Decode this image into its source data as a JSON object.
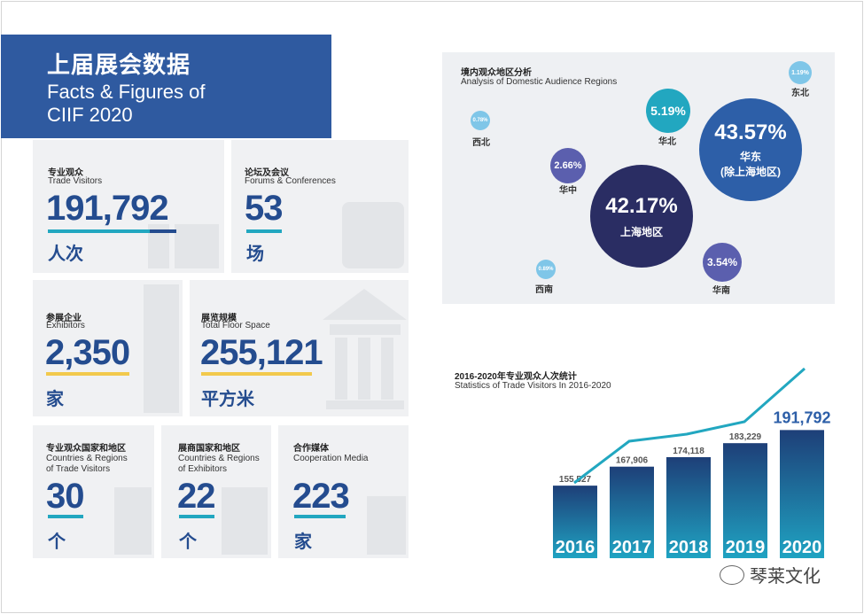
{
  "header": {
    "title_cn": "上届展会数据",
    "title_en_line1": "Facts & Figures of",
    "title_en_line2": "CIIF 2020"
  },
  "stats": {
    "trade_visitors": {
      "label_cn": "专业观众",
      "label_en": "Trade Visitors",
      "value": "191,792",
      "unit": "人次"
    },
    "forums": {
      "label_cn": "论坛及会议",
      "label_en": "Forums & Conferences",
      "value": "53",
      "unit": "场"
    },
    "exhibitors": {
      "label_cn": "参展企业",
      "label_en": "Exhibitors",
      "value": "2,350",
      "unit": "家"
    },
    "floor_space": {
      "label_cn": "展览规模",
      "label_en": "Total Floor Space",
      "value": "255,121",
      "unit": "平方米"
    },
    "visitor_countries": {
      "label_cn": "专业观众国家和地区",
      "label_en_1": "Countries & Regions",
      "label_en_2": "of Trade Visitors",
      "value": "30",
      "unit": "个"
    },
    "exhibitor_countries": {
      "label_cn": "展商国家和地区",
      "label_en_1": "Countries & Regions",
      "label_en_2": "of Exhibitors",
      "value": "22",
      "unit": "个"
    },
    "media": {
      "label_cn": "合作媒体",
      "label_en": "Cooperation Media",
      "value": "223",
      "unit": "家"
    }
  },
  "regions": {
    "title_cn": "境内观众地区分析",
    "title_en": "Analysis of Domestic Audience Regions",
    "items": [
      {
        "pct": "43.57%",
        "name": "华东",
        "name2": "(除上海地区)"
      },
      {
        "pct": "42.17%",
        "name": "上海地区"
      },
      {
        "pct": "5.19%",
        "name": "华北"
      },
      {
        "pct": "3.54%",
        "name": "华南"
      },
      {
        "pct": "2.66%",
        "name": "华中"
      },
      {
        "pct": "1.19%",
        "name": "东北"
      },
      {
        "pct": "0.78%",
        "name": "西北"
      },
      {
        "pct": "0.89%",
        "name": "西南"
      }
    ],
    "colors": {
      "dark": "#2a2d63",
      "blue": "#2d5fa8",
      "teal": "#22a7c0",
      "purple": "#5b5fae",
      "light": "#7fc6e8"
    }
  },
  "trend": {
    "title_cn": "2016-2020年专业观众人次统计",
    "title_en": "Statistics of Trade Visitors In 2016-2020"
  },
  "chart_data": {
    "type": "bar",
    "title": "2016-2020年专业观众人次统计",
    "categories": [
      "2016",
      "2017",
      "2018",
      "2019",
      "2020"
    ],
    "values": [
      155527,
      167906,
      174118,
      183229,
      191792
    ],
    "value_labels": [
      "155,527",
      "167,906",
      "174,118",
      "183,229",
      "191,792"
    ],
    "overlay": "line",
    "bar_color_top": "#1e3f78",
    "bar_color_bottom": "#1fa3c2",
    "line_color": "#22a7c0",
    "highlight_color": "#2d5fa8"
  },
  "watermark": {
    "text": "琴莱文化"
  }
}
